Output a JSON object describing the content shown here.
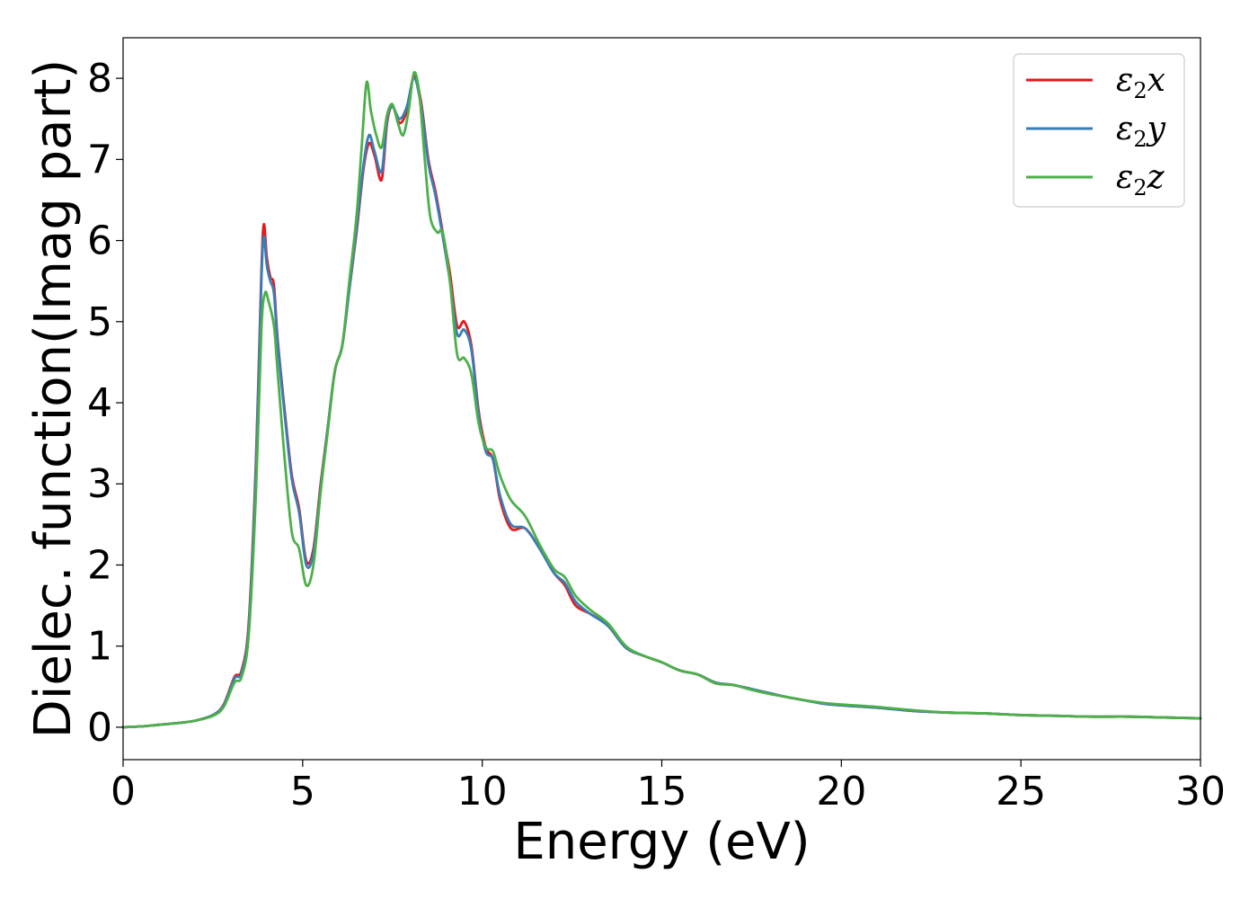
{
  "chart_data": {
    "type": "line",
    "title": "",
    "xlabel": "Energy (eV)",
    "ylabel": "Dielec. function(Imag part)",
    "xlim": [
      0,
      30
    ],
    "ylim": [
      -0.4,
      8.5
    ],
    "xticks": [
      0,
      5,
      10,
      15,
      20,
      25,
      30
    ],
    "yticks": [
      0,
      1,
      2,
      3,
      4,
      5,
      6,
      7,
      8
    ],
    "grid": false,
    "legend_position": "top-right",
    "series": [
      {
        "name": "ε2x",
        "legend_base": "ε",
        "legend_sub": "2",
        "legend_suffix": "x",
        "color": "#e41a1c",
        "points": [
          [
            0,
            0
          ],
          [
            0.5,
            0.01
          ],
          [
            1,
            0.03
          ],
          [
            1.5,
            0.05
          ],
          [
            2,
            0.08
          ],
          [
            2.5,
            0.15
          ],
          [
            2.8,
            0.28
          ],
          [
            3.1,
            0.62
          ],
          [
            3.3,
            0.7
          ],
          [
            3.5,
            1.3
          ],
          [
            3.7,
            3.3
          ],
          [
            3.85,
            5.6
          ],
          [
            3.92,
            6.2
          ],
          [
            4.0,
            5.8
          ],
          [
            4.1,
            5.55
          ],
          [
            4.2,
            5.45
          ],
          [
            4.3,
            4.8
          ],
          [
            4.5,
            3.9
          ],
          [
            4.7,
            3.1
          ],
          [
            4.9,
            2.7
          ],
          [
            5.1,
            2.05
          ],
          [
            5.3,
            2.2
          ],
          [
            5.5,
            3.0
          ],
          [
            5.7,
            3.7
          ],
          [
            5.9,
            4.4
          ],
          [
            6.1,
            4.7
          ],
          [
            6.3,
            5.4
          ],
          [
            6.5,
            6.1
          ],
          [
            6.7,
            6.9
          ],
          [
            6.85,
            7.2
          ],
          [
            7.0,
            7.05
          ],
          [
            7.2,
            6.75
          ],
          [
            7.35,
            7.45
          ],
          [
            7.5,
            7.65
          ],
          [
            7.7,
            7.45
          ],
          [
            7.9,
            7.6
          ],
          [
            8.1,
            8.03
          ],
          [
            8.3,
            7.7
          ],
          [
            8.5,
            7.0
          ],
          [
            8.7,
            6.6
          ],
          [
            8.9,
            6.1
          ],
          [
            9.1,
            5.6
          ],
          [
            9.3,
            4.95
          ],
          [
            9.5,
            5.0
          ],
          [
            9.7,
            4.7
          ],
          [
            9.9,
            3.9
          ],
          [
            10.1,
            3.45
          ],
          [
            10.3,
            3.3
          ],
          [
            10.5,
            2.8
          ],
          [
            10.8,
            2.45
          ],
          [
            11.2,
            2.45
          ],
          [
            11.6,
            2.2
          ],
          [
            12.0,
            1.9
          ],
          [
            12.3,
            1.75
          ],
          [
            12.6,
            1.5
          ],
          [
            13.0,
            1.4
          ],
          [
            13.5,
            1.25
          ],
          [
            14.0,
            0.98
          ],
          [
            14.5,
            0.88
          ],
          [
            15.0,
            0.8
          ],
          [
            15.5,
            0.7
          ],
          [
            16.0,
            0.65
          ],
          [
            16.5,
            0.55
          ],
          [
            17.0,
            0.52
          ],
          [
            17.5,
            0.47
          ],
          [
            18.0,
            0.42
          ],
          [
            18.5,
            0.37
          ],
          [
            19.0,
            0.33
          ],
          [
            19.5,
            0.29
          ],
          [
            20.0,
            0.27
          ],
          [
            21.0,
            0.24
          ],
          [
            22.0,
            0.2
          ],
          [
            23.0,
            0.18
          ],
          [
            24.0,
            0.17
          ],
          [
            25.0,
            0.15
          ],
          [
            26.0,
            0.14
          ],
          [
            27.0,
            0.13
          ],
          [
            28.0,
            0.13
          ],
          [
            29.0,
            0.12
          ],
          [
            30.0,
            0.11
          ]
        ]
      },
      {
        "name": "ε2y",
        "legend_base": "ε",
        "legend_sub": "2",
        "legend_suffix": "y",
        "color": "#377eb8",
        "points": [
          [
            0,
            0
          ],
          [
            0.5,
            0.01
          ],
          [
            1,
            0.03
          ],
          [
            1.5,
            0.05
          ],
          [
            2,
            0.08
          ],
          [
            2.5,
            0.15
          ],
          [
            2.8,
            0.27
          ],
          [
            3.1,
            0.6
          ],
          [
            3.3,
            0.67
          ],
          [
            3.5,
            1.25
          ],
          [
            3.7,
            3.2
          ],
          [
            3.85,
            5.5
          ],
          [
            3.92,
            6.05
          ],
          [
            4.0,
            5.7
          ],
          [
            4.1,
            5.5
          ],
          [
            4.2,
            5.35
          ],
          [
            4.3,
            4.75
          ],
          [
            4.5,
            3.85
          ],
          [
            4.7,
            3.05
          ],
          [
            4.9,
            2.65
          ],
          [
            5.1,
            2.0
          ],
          [
            5.3,
            2.15
          ],
          [
            5.5,
            2.95
          ],
          [
            5.7,
            3.7
          ],
          [
            5.9,
            4.4
          ],
          [
            6.1,
            4.7
          ],
          [
            6.3,
            5.4
          ],
          [
            6.5,
            6.15
          ],
          [
            6.7,
            6.95
          ],
          [
            6.85,
            7.3
          ],
          [
            7.0,
            7.1
          ],
          [
            7.2,
            6.85
          ],
          [
            7.35,
            7.5
          ],
          [
            7.5,
            7.65
          ],
          [
            7.7,
            7.5
          ],
          [
            7.9,
            7.65
          ],
          [
            8.1,
            8.0
          ],
          [
            8.3,
            7.65
          ],
          [
            8.5,
            6.95
          ],
          [
            8.7,
            6.55
          ],
          [
            8.9,
            6.05
          ],
          [
            9.1,
            5.5
          ],
          [
            9.3,
            4.85
          ],
          [
            9.5,
            4.9
          ],
          [
            9.7,
            4.65
          ],
          [
            9.9,
            3.85
          ],
          [
            10.1,
            3.4
          ],
          [
            10.3,
            3.3
          ],
          [
            10.5,
            2.85
          ],
          [
            10.8,
            2.5
          ],
          [
            11.2,
            2.45
          ],
          [
            11.6,
            2.2
          ],
          [
            12.0,
            1.9
          ],
          [
            12.3,
            1.78
          ],
          [
            12.6,
            1.55
          ],
          [
            13.0,
            1.4
          ],
          [
            13.5,
            1.25
          ],
          [
            14.0,
            0.98
          ],
          [
            14.5,
            0.88
          ],
          [
            15.0,
            0.8
          ],
          [
            15.5,
            0.7
          ],
          [
            16.0,
            0.65
          ],
          [
            16.5,
            0.55
          ],
          [
            17.0,
            0.52
          ],
          [
            17.5,
            0.47
          ],
          [
            18.0,
            0.42
          ],
          [
            18.5,
            0.37
          ],
          [
            19.0,
            0.33
          ],
          [
            19.5,
            0.29
          ],
          [
            20.0,
            0.27
          ],
          [
            21.0,
            0.24
          ],
          [
            22.0,
            0.2
          ],
          [
            23.0,
            0.18
          ],
          [
            24.0,
            0.17
          ],
          [
            25.0,
            0.15
          ],
          [
            26.0,
            0.14
          ],
          [
            27.0,
            0.13
          ],
          [
            28.0,
            0.13
          ],
          [
            29.0,
            0.12
          ],
          [
            30.0,
            0.11
          ]
        ]
      },
      {
        "name": "ε2z",
        "legend_base": "ε",
        "legend_sub": "2",
        "legend_suffix": "z",
        "color": "#4daf4a",
        "points": [
          [
            0,
            0
          ],
          [
            0.5,
            0.01
          ],
          [
            1,
            0.03
          ],
          [
            1.5,
            0.05
          ],
          [
            2,
            0.08
          ],
          [
            2.5,
            0.14
          ],
          [
            2.8,
            0.25
          ],
          [
            3.1,
            0.55
          ],
          [
            3.3,
            0.62
          ],
          [
            3.5,
            1.15
          ],
          [
            3.7,
            2.9
          ],
          [
            3.85,
            4.9
          ],
          [
            3.95,
            5.35
          ],
          [
            4.05,
            5.25
          ],
          [
            4.2,
            4.95
          ],
          [
            4.3,
            4.4
          ],
          [
            4.5,
            3.3
          ],
          [
            4.7,
            2.4
          ],
          [
            4.9,
            2.2
          ],
          [
            5.1,
            1.75
          ],
          [
            5.3,
            2.0
          ],
          [
            5.5,
            2.9
          ],
          [
            5.7,
            3.65
          ],
          [
            5.9,
            4.4
          ],
          [
            6.1,
            4.7
          ],
          [
            6.3,
            5.5
          ],
          [
            6.5,
            6.3
          ],
          [
            6.65,
            7.2
          ],
          [
            6.78,
            7.95
          ],
          [
            6.9,
            7.6
          ],
          [
            7.05,
            7.3
          ],
          [
            7.2,
            7.15
          ],
          [
            7.35,
            7.55
          ],
          [
            7.5,
            7.68
          ],
          [
            7.65,
            7.45
          ],
          [
            7.8,
            7.3
          ],
          [
            7.95,
            7.6
          ],
          [
            8.1,
            8.07
          ],
          [
            8.25,
            7.8
          ],
          [
            8.4,
            7.0
          ],
          [
            8.55,
            6.3
          ],
          [
            8.75,
            6.1
          ],
          [
            8.9,
            6.1
          ],
          [
            9.1,
            5.5
          ],
          [
            9.3,
            4.6
          ],
          [
            9.5,
            4.55
          ],
          [
            9.7,
            4.35
          ],
          [
            9.9,
            3.75
          ],
          [
            10.1,
            3.45
          ],
          [
            10.3,
            3.4
          ],
          [
            10.5,
            3.1
          ],
          [
            10.8,
            2.8
          ],
          [
            11.2,
            2.6
          ],
          [
            11.6,
            2.25
          ],
          [
            12.0,
            1.95
          ],
          [
            12.3,
            1.85
          ],
          [
            12.6,
            1.62
          ],
          [
            13.0,
            1.45
          ],
          [
            13.5,
            1.28
          ],
          [
            14.0,
            1.0
          ],
          [
            14.5,
            0.88
          ],
          [
            15.0,
            0.8
          ],
          [
            15.5,
            0.7
          ],
          [
            16.0,
            0.65
          ],
          [
            16.5,
            0.54
          ],
          [
            17.0,
            0.52
          ],
          [
            17.5,
            0.46
          ],
          [
            18.0,
            0.41
          ],
          [
            18.5,
            0.37
          ],
          [
            19.0,
            0.33
          ],
          [
            19.5,
            0.3
          ],
          [
            20.0,
            0.28
          ],
          [
            21.0,
            0.25
          ],
          [
            22.0,
            0.21
          ],
          [
            23.0,
            0.18
          ],
          [
            24.0,
            0.17
          ],
          [
            25.0,
            0.15
          ],
          [
            26.0,
            0.14
          ],
          [
            27.0,
            0.13
          ],
          [
            28.0,
            0.13
          ],
          [
            29.0,
            0.12
          ],
          [
            30.0,
            0.11
          ]
        ]
      }
    ]
  }
}
